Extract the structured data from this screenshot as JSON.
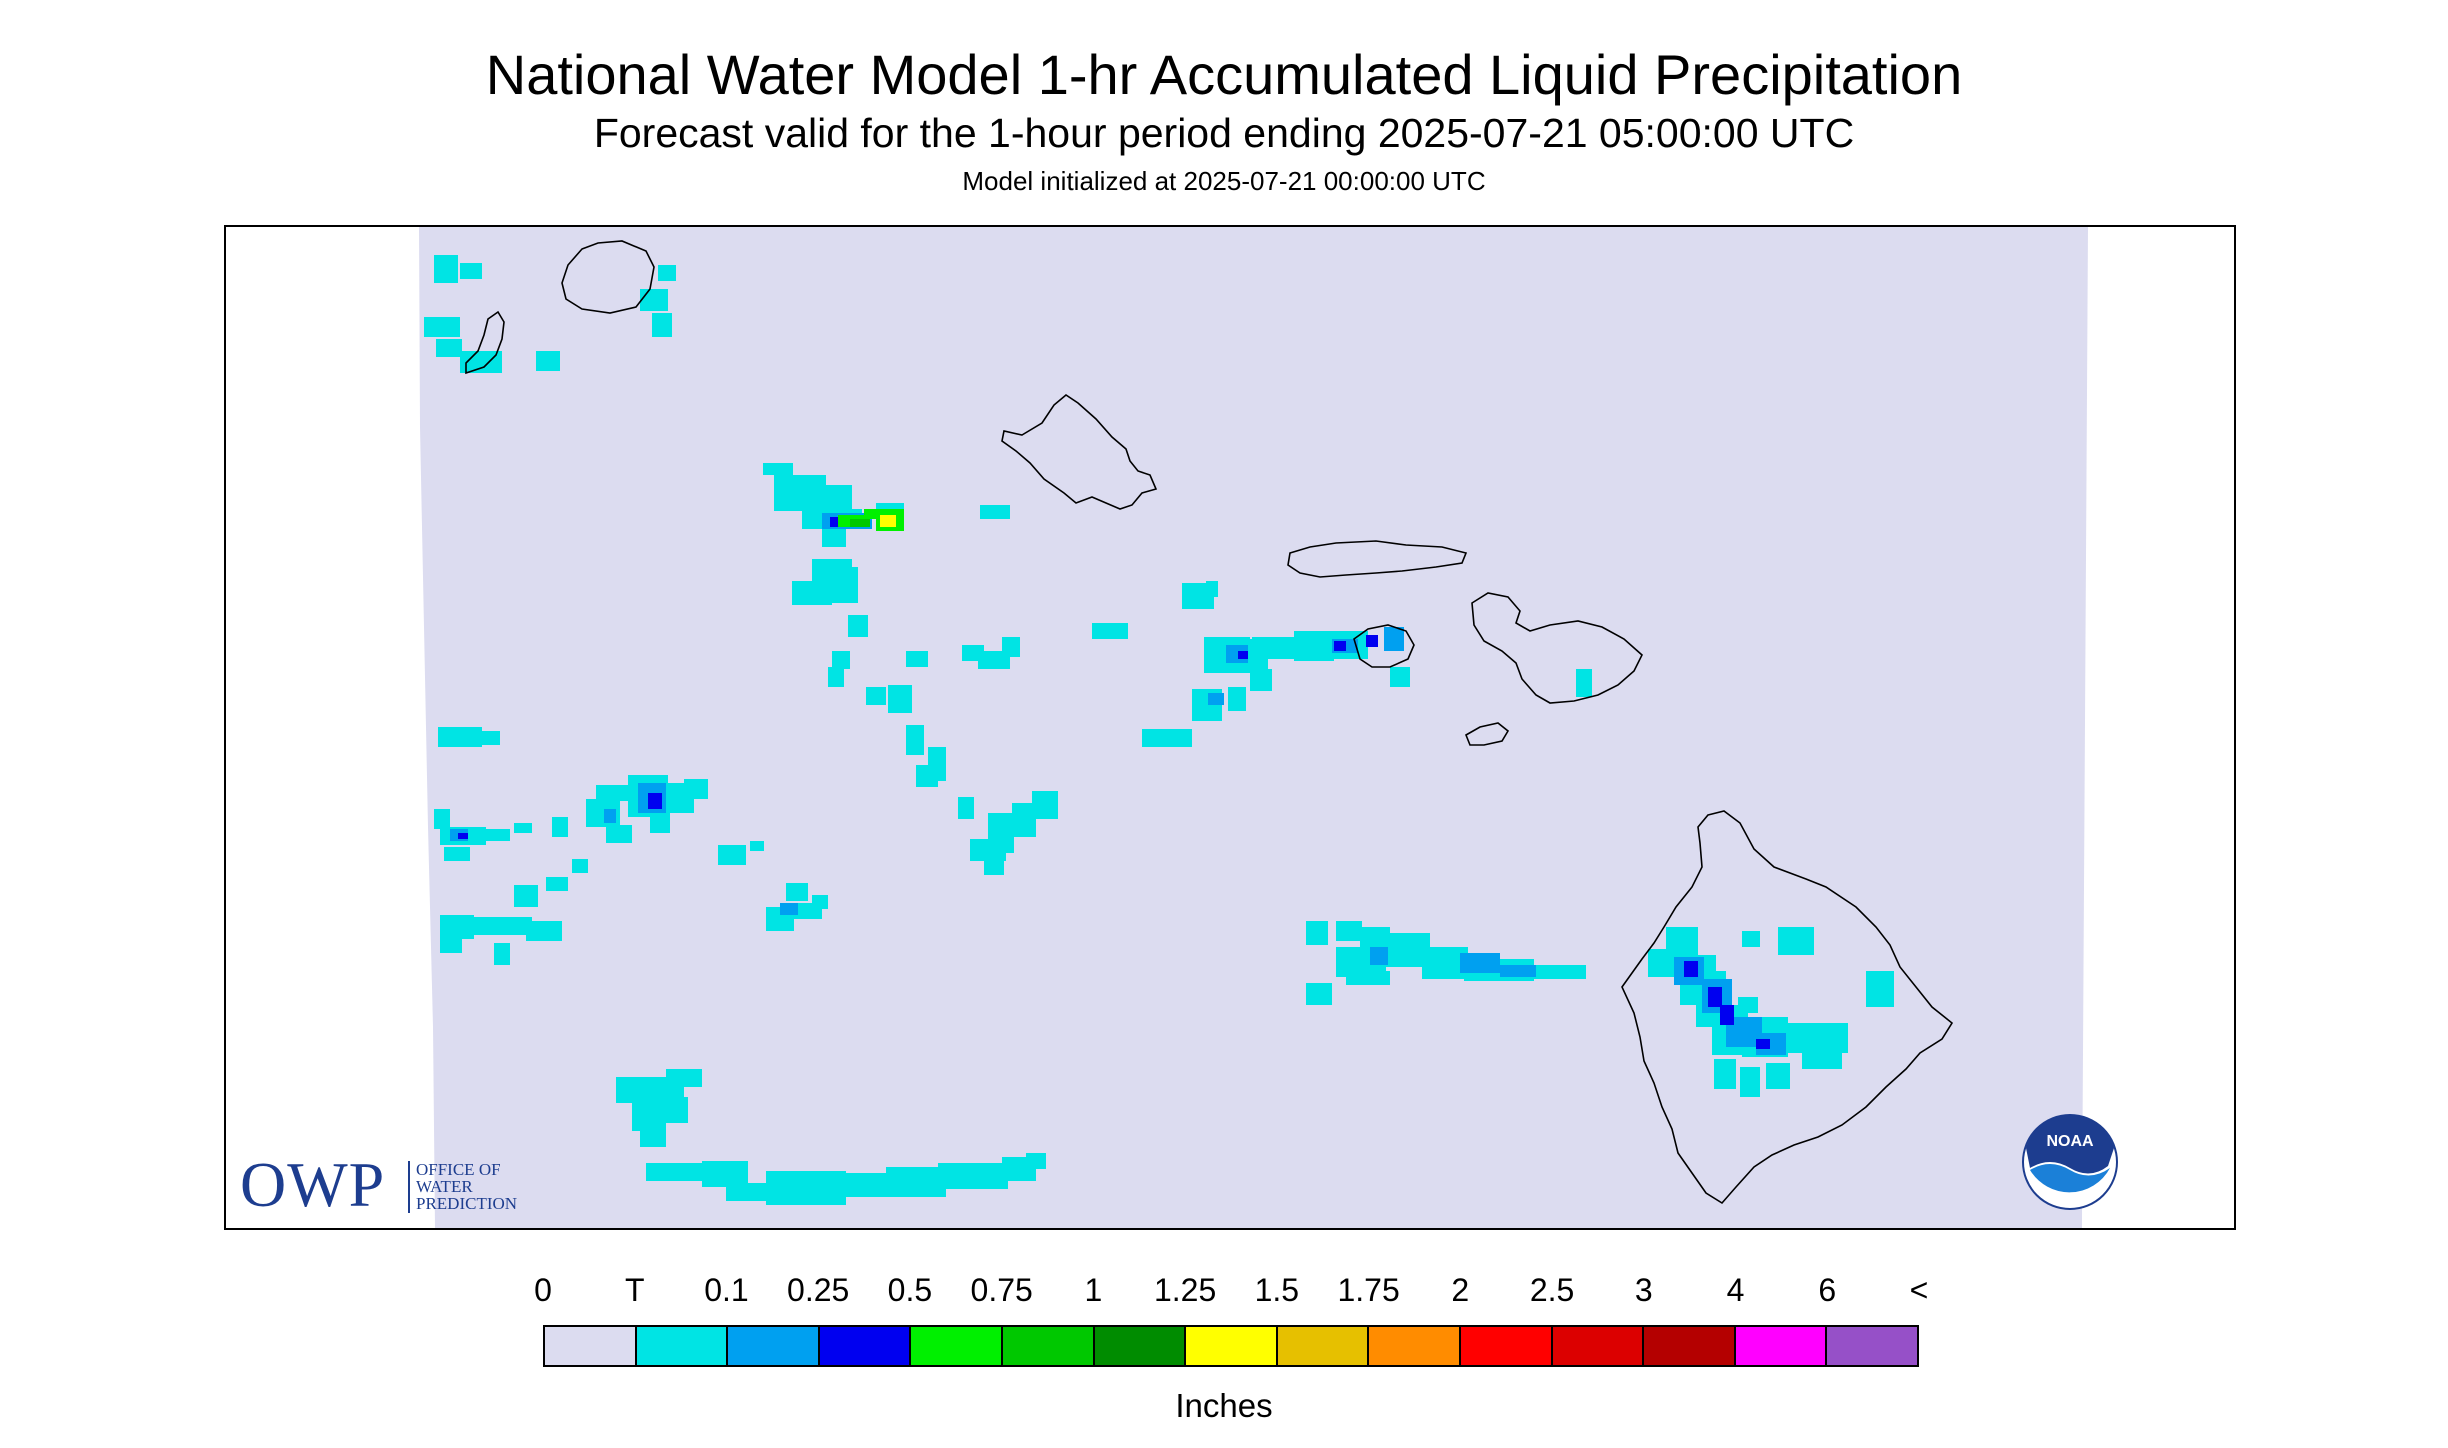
{
  "title": "National Water Model 1-hr Accumulated Liquid Precipitation",
  "subtitle": "Forecast valid for the 1-hour period ending 2025-07-21 05:00:00 UTC",
  "init_line": "Model initialized at 2025-07-21 00:00:00 UTC",
  "logos": {
    "owp_mark": "OWP",
    "owp_lines": [
      "OFFICE OF",
      "WATER",
      "PREDICTION"
    ],
    "noaa": "NOAA"
  },
  "legend": {
    "units": "Inches",
    "ticks": [
      "0",
      "T",
      "0.1",
      "0.25",
      "0.5",
      "0.75",
      "1",
      "1.25",
      "1.5",
      "1.75",
      "2",
      "2.5",
      "3",
      "4",
      "6",
      "<"
    ],
    "colors": [
      "#dcdcf0",
      "#00e4e4",
      "#00a0f0",
      "#0000f0",
      "#00f000",
      "#00c800",
      "#008c00",
      "#ffff00",
      "#e6c000",
      "#ff8c00",
      "#ff0000",
      "#dc0000",
      "#b40000",
      "#ff00ff",
      "#9650c8"
    ]
  },
  "map_colors": {
    "domain_fill": "#dcdcf0",
    "coast": "#000000"
  }
}
